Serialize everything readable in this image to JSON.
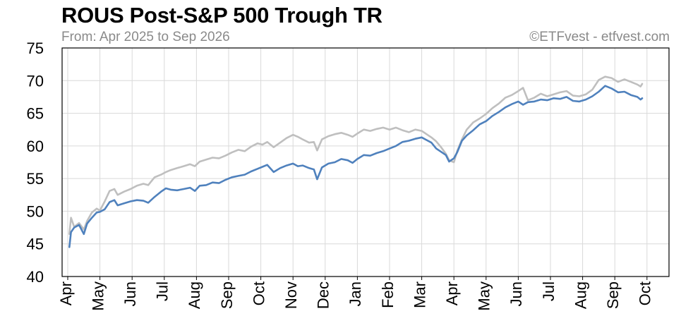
{
  "header": {
    "title": "ROUS Post-S&P 500 Trough TR",
    "subtitle": "From: Apr 2025 to Sep 2026",
    "source": "©ETFvest - etfvest.com"
  },
  "chart_data": {
    "type": "line",
    "title": "ROUS Post-S&P 500 Trough TR",
    "subtitle": "From: Apr 2025 to Sep 2026",
    "xlabel": "",
    "ylabel": "",
    "ylim": [
      40,
      75
    ],
    "yticks": [
      40,
      45,
      50,
      55,
      60,
      65,
      70,
      75
    ],
    "xticks": [
      "Apr",
      "May",
      "Jun",
      "Jul",
      "Aug",
      "Sep",
      "Oct",
      "Nov",
      "Dec",
      "Jan",
      "Feb",
      "Mar",
      "Apr",
      "May",
      "Jun",
      "Jul",
      "Aug",
      "Sep",
      "Oct"
    ],
    "xlim": [
      0,
      18.2
    ],
    "grid": true,
    "legend": "none",
    "colors": {
      "series_blue": "#4f81bd",
      "series_gray": "#bfbfbf",
      "grid": "#d9d9d9",
      "axis": "#000000"
    },
    "series": [
      {
        "color": "#bfbfbf",
        "points": [
          [
            0.05,
            46.5
          ],
          [
            0.1,
            49.0
          ],
          [
            0.2,
            47.6
          ],
          [
            0.35,
            48.2
          ],
          [
            0.5,
            47.2
          ],
          [
            0.6,
            48.5
          ],
          [
            0.75,
            49.8
          ],
          [
            0.9,
            50.4
          ],
          [
            1.0,
            50.1
          ],
          [
            1.15,
            51.5
          ],
          [
            1.3,
            53.1
          ],
          [
            1.45,
            53.4
          ],
          [
            1.55,
            52.5
          ],
          [
            1.75,
            53.0
          ],
          [
            1.95,
            53.4
          ],
          [
            2.15,
            53.9
          ],
          [
            2.35,
            54.2
          ],
          [
            2.5,
            54.0
          ],
          [
            2.7,
            55.2
          ],
          [
            2.9,
            55.6
          ],
          [
            3.05,
            56.0
          ],
          [
            3.2,
            56.3
          ],
          [
            3.4,
            56.6
          ],
          [
            3.6,
            56.9
          ],
          [
            3.8,
            57.2
          ],
          [
            3.95,
            56.9
          ],
          [
            4.1,
            57.6
          ],
          [
            4.3,
            57.9
          ],
          [
            4.5,
            58.2
          ],
          [
            4.7,
            58.1
          ],
          [
            4.9,
            58.5
          ],
          [
            5.1,
            59.0
          ],
          [
            5.3,
            59.4
          ],
          [
            5.5,
            59.2
          ],
          [
            5.7,
            59.9
          ],
          [
            5.9,
            60.4
          ],
          [
            6.05,
            60.2
          ],
          [
            6.2,
            60.6
          ],
          [
            6.4,
            59.8
          ],
          [
            6.6,
            60.5
          ],
          [
            6.8,
            61.2
          ],
          [
            7.0,
            61.7
          ],
          [
            7.15,
            61.4
          ],
          [
            7.3,
            61.0
          ],
          [
            7.5,
            60.5
          ],
          [
            7.65,
            60.6
          ],
          [
            7.75,
            59.3
          ],
          [
            7.9,
            61.0
          ],
          [
            8.1,
            61.5
          ],
          [
            8.3,
            61.8
          ],
          [
            8.5,
            62.0
          ],
          [
            8.7,
            61.7
          ],
          [
            8.85,
            61.4
          ],
          [
            9.0,
            61.9
          ],
          [
            9.2,
            62.5
          ],
          [
            9.4,
            62.3
          ],
          [
            9.6,
            62.6
          ],
          [
            9.8,
            62.8
          ],
          [
            10.0,
            62.5
          ],
          [
            10.2,
            62.8
          ],
          [
            10.4,
            62.4
          ],
          [
            10.6,
            62.1
          ],
          [
            10.8,
            62.5
          ],
          [
            11.0,
            62.3
          ],
          [
            11.15,
            61.8
          ],
          [
            11.3,
            61.3
          ],
          [
            11.45,
            60.7
          ],
          [
            11.6,
            59.8
          ],
          [
            11.75,
            58.8
          ],
          [
            11.85,
            57.8
          ],
          [
            12.0,
            57.5
          ],
          [
            12.1,
            59.2
          ],
          [
            12.25,
            61.0
          ],
          [
            12.4,
            62.5
          ],
          [
            12.6,
            63.6
          ],
          [
            12.8,
            64.2
          ],
          [
            13.0,
            64.9
          ],
          [
            13.2,
            65.8
          ],
          [
            13.4,
            66.5
          ],
          [
            13.6,
            67.4
          ],
          [
            13.8,
            67.8
          ],
          [
            14.0,
            68.4
          ],
          [
            14.15,
            68.9
          ],
          [
            14.3,
            67.0
          ],
          [
            14.5,
            67.4
          ],
          [
            14.7,
            68.0
          ],
          [
            14.9,
            67.6
          ],
          [
            15.1,
            67.9
          ],
          [
            15.3,
            68.2
          ],
          [
            15.5,
            68.4
          ],
          [
            15.7,
            67.7
          ],
          [
            15.9,
            67.6
          ],
          [
            16.1,
            67.9
          ],
          [
            16.3,
            68.6
          ],
          [
            16.5,
            70.1
          ],
          [
            16.7,
            70.6
          ],
          [
            16.9,
            70.4
          ],
          [
            17.1,
            69.8
          ],
          [
            17.3,
            70.2
          ],
          [
            17.5,
            69.8
          ],
          [
            17.7,
            69.4
          ],
          [
            17.8,
            69.1
          ],
          [
            17.85,
            69.5
          ]
        ]
      },
      {
        "color": "#4f81bd",
        "points": [
          [
            0.05,
            44.5
          ],
          [
            0.1,
            46.8
          ],
          [
            0.2,
            47.5
          ],
          [
            0.35,
            47.9
          ],
          [
            0.5,
            46.5
          ],
          [
            0.6,
            48.1
          ],
          [
            0.75,
            49.0
          ],
          [
            0.9,
            49.8
          ],
          [
            1.0,
            49.9
          ],
          [
            1.15,
            50.3
          ],
          [
            1.3,
            51.4
          ],
          [
            1.45,
            51.7
          ],
          [
            1.55,
            50.9
          ],
          [
            1.75,
            51.2
          ],
          [
            1.95,
            51.5
          ],
          [
            2.15,
            51.7
          ],
          [
            2.35,
            51.6
          ],
          [
            2.5,
            51.3
          ],
          [
            2.7,
            52.2
          ],
          [
            2.9,
            53.0
          ],
          [
            3.05,
            53.5
          ],
          [
            3.2,
            53.3
          ],
          [
            3.4,
            53.2
          ],
          [
            3.6,
            53.4
          ],
          [
            3.8,
            53.6
          ],
          [
            3.95,
            53.1
          ],
          [
            4.1,
            53.9
          ],
          [
            4.3,
            54.0
          ],
          [
            4.5,
            54.4
          ],
          [
            4.7,
            54.3
          ],
          [
            4.9,
            54.8
          ],
          [
            5.1,
            55.2
          ],
          [
            5.3,
            55.4
          ],
          [
            5.5,
            55.6
          ],
          [
            5.7,
            56.1
          ],
          [
            5.9,
            56.5
          ],
          [
            6.05,
            56.8
          ],
          [
            6.2,
            57.1
          ],
          [
            6.4,
            56.0
          ],
          [
            6.6,
            56.6
          ],
          [
            6.8,
            57.0
          ],
          [
            7.0,
            57.3
          ],
          [
            7.15,
            56.9
          ],
          [
            7.3,
            57.0
          ],
          [
            7.5,
            56.6
          ],
          [
            7.65,
            56.4
          ],
          [
            7.75,
            54.9
          ],
          [
            7.9,
            56.7
          ],
          [
            8.1,
            57.3
          ],
          [
            8.3,
            57.5
          ],
          [
            8.5,
            58.0
          ],
          [
            8.7,
            57.8
          ],
          [
            8.85,
            57.4
          ],
          [
            9.0,
            58.0
          ],
          [
            9.2,
            58.6
          ],
          [
            9.4,
            58.5
          ],
          [
            9.6,
            58.9
          ],
          [
            9.8,
            59.2
          ],
          [
            10.0,
            59.6
          ],
          [
            10.2,
            60.0
          ],
          [
            10.4,
            60.6
          ],
          [
            10.6,
            60.8
          ],
          [
            10.8,
            61.1
          ],
          [
            11.0,
            61.3
          ],
          [
            11.15,
            60.9
          ],
          [
            11.3,
            60.5
          ],
          [
            11.45,
            59.6
          ],
          [
            11.6,
            59.1
          ],
          [
            11.75,
            58.6
          ],
          [
            11.85,
            57.6
          ],
          [
            12.0,
            58.1
          ],
          [
            12.1,
            59.0
          ],
          [
            12.25,
            60.8
          ],
          [
            12.4,
            61.6
          ],
          [
            12.6,
            62.4
          ],
          [
            12.8,
            63.3
          ],
          [
            13.0,
            63.8
          ],
          [
            13.2,
            64.6
          ],
          [
            13.4,
            65.2
          ],
          [
            13.6,
            65.9
          ],
          [
            13.8,
            66.4
          ],
          [
            14.0,
            66.8
          ],
          [
            14.15,
            66.3
          ],
          [
            14.3,
            66.7
          ],
          [
            14.5,
            66.8
          ],
          [
            14.7,
            67.1
          ],
          [
            14.9,
            67.0
          ],
          [
            15.1,
            67.3
          ],
          [
            15.3,
            67.2
          ],
          [
            15.5,
            67.5
          ],
          [
            15.7,
            66.9
          ],
          [
            15.9,
            66.8
          ],
          [
            16.1,
            67.1
          ],
          [
            16.3,
            67.6
          ],
          [
            16.5,
            68.3
          ],
          [
            16.7,
            69.2
          ],
          [
            16.9,
            68.8
          ],
          [
            17.1,
            68.2
          ],
          [
            17.3,
            68.3
          ],
          [
            17.5,
            67.8
          ],
          [
            17.7,
            67.5
          ],
          [
            17.8,
            67.1
          ],
          [
            17.85,
            67.3
          ]
        ]
      }
    ]
  }
}
